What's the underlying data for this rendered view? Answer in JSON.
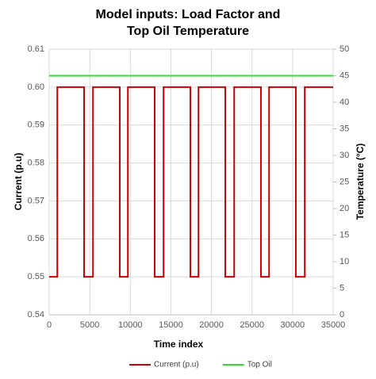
{
  "chart_data": {
    "type": "line",
    "title": [
      "Model inputs: Load Factor and",
      "Top Oil Temperature"
    ],
    "x_label": "Time index",
    "y_label": "Current (p.u)",
    "y2_label": "Temperature (°C)",
    "xlim": [
      0,
      35000
    ],
    "xticks": [
      0,
      5000,
      10000,
      15000,
      20000,
      25000,
      30000,
      35000
    ],
    "ylim": [
      0.54,
      0.61
    ],
    "yticks": [
      0.54,
      0.55,
      0.56,
      0.57,
      0.58,
      0.59,
      {
        "value": 0.6,
        "label": "0.60"
      },
      0.61
    ],
    "y2lim": [
      0,
      50
    ],
    "y2ticks": [
      0,
      5,
      10,
      15,
      20,
      25,
      30,
      35,
      40,
      45,
      50
    ],
    "grid": true,
    "legend": "bottom",
    "series": [
      {
        "name": "Current (p.u)",
        "color": "#cc0000",
        "x": [
          0,
          1000,
          1000,
          4300,
          4300,
          5400,
          5400,
          8700,
          8700,
          9700,
          9700,
          13000,
          13000,
          14100,
          14100,
          17400,
          17400,
          18400,
          18400,
          21700,
          21700,
          22800,
          22800,
          26100,
          26100,
          27100,
          27100,
          30400,
          30400,
          31500,
          31500,
          35000
        ],
        "values": [
          0.55,
          0.55,
          0.6,
          0.6,
          0.55,
          0.55,
          0.6,
          0.6,
          0.55,
          0.55,
          0.6,
          0.6,
          0.55,
          0.55,
          0.6,
          0.6,
          0.55,
          0.55,
          0.6,
          0.6,
          0.55,
          0.55,
          0.6,
          0.6,
          0.55,
          0.55,
          0.6,
          0.6,
          0.55,
          0.55,
          0.6,
          0.6
        ]
      },
      {
        "name": "Top Oil",
        "color": "#33dd33",
        "axis": "y2",
        "x": [
          0,
          35000
        ],
        "values": [
          45,
          45
        ]
      }
    ]
  }
}
